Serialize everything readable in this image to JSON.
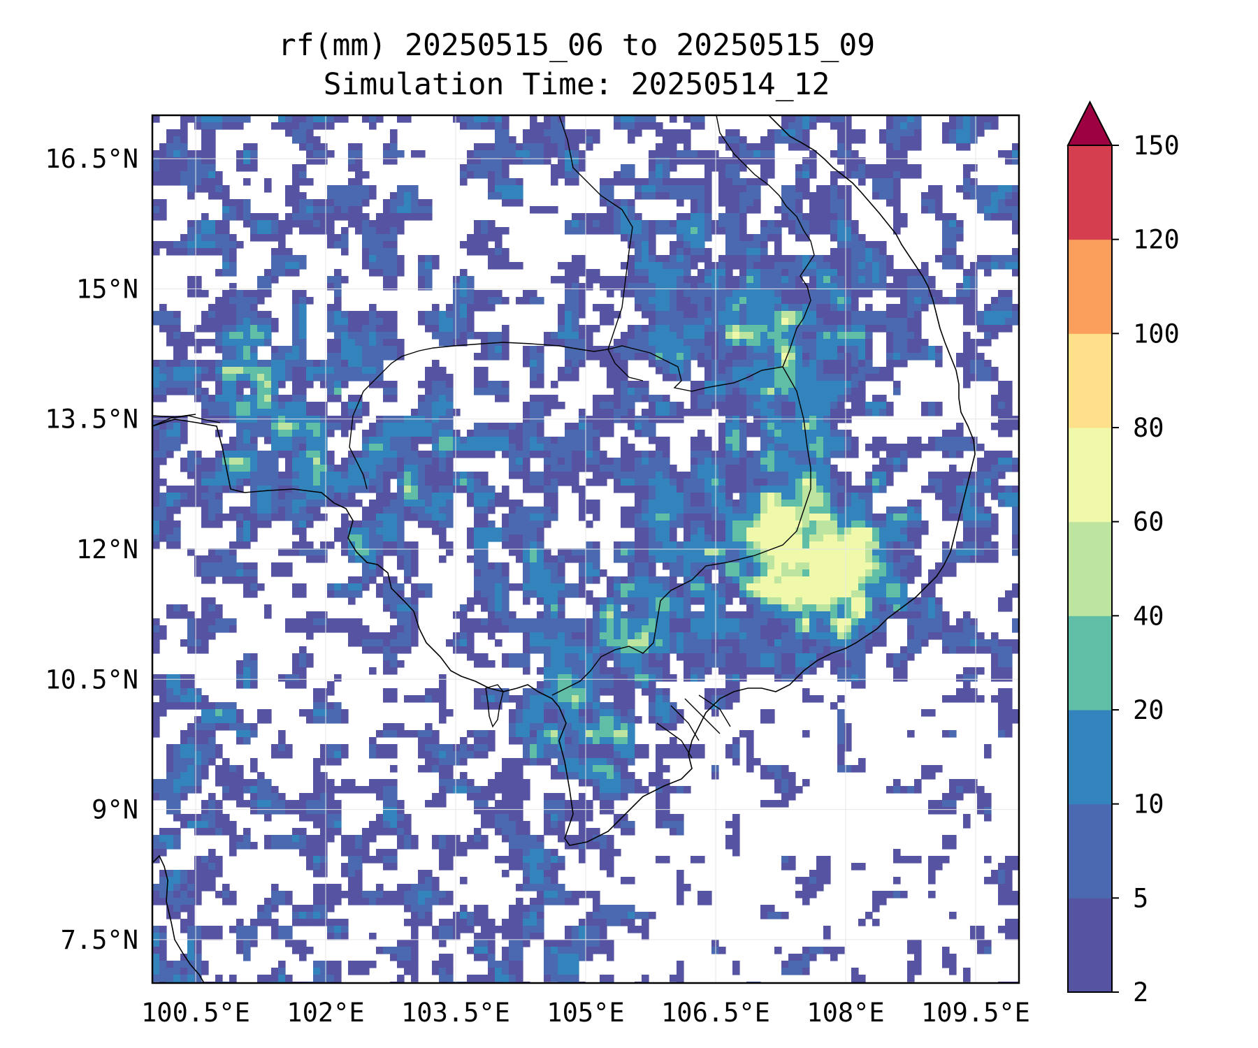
{
  "title": {
    "line1": "rf(mm) 20250515_06 to 20250515_09",
    "line2": "Simulation Time: 20250514_12"
  },
  "map": {
    "extent": {
      "lon_min": 100.0,
      "lon_max": 110.0,
      "lat_min": 7.0,
      "lat_max": 17.0
    },
    "lon_ticks": [
      {
        "value": 100.5,
        "label": "100.5°E"
      },
      {
        "value": 102.0,
        "label": "102°E"
      },
      {
        "value": 103.5,
        "label": "103.5°E"
      },
      {
        "value": 105.0,
        "label": "105°E"
      },
      {
        "value": 106.5,
        "label": "106.5°E"
      },
      {
        "value": 108.0,
        "label": "108°E"
      },
      {
        "value": 109.5,
        "label": "109.5°E"
      }
    ],
    "lat_ticks": [
      {
        "value": 16.5,
        "label": "16.5°N"
      },
      {
        "value": 15.0,
        "label": "15°N"
      },
      {
        "value": 13.5,
        "label": "13.5°N"
      },
      {
        "value": 12.0,
        "label": "12°N"
      },
      {
        "value": 10.5,
        "label": "10.5°N"
      },
      {
        "value": 9.0,
        "label": "9°N"
      },
      {
        "value": 7.5,
        "label": "7.5°N"
      }
    ],
    "grid": true,
    "coastline_color": "#000000",
    "rain_field": "precipitation accumulation contours (mostly 2-10 mm, locally 20-80 mm over southern Laos, central Vietnam highlands and western Cambodia)"
  },
  "colorbar": {
    "levels": [
      2,
      5,
      10,
      20,
      40,
      60,
      80,
      100,
      120,
      150
    ],
    "labels": [
      "2",
      "5",
      "10",
      "20",
      "40",
      "60",
      "80",
      "100",
      "120",
      "150"
    ],
    "colors": [
      "#5654a2",
      "#4a69b0",
      "#3383bc",
      "#61bea6",
      "#bde5a0",
      "#f0f9aa",
      "#fee08b",
      "#fba05c",
      "#d53e4f",
      "#9e0142"
    ],
    "extend": "max"
  }
}
